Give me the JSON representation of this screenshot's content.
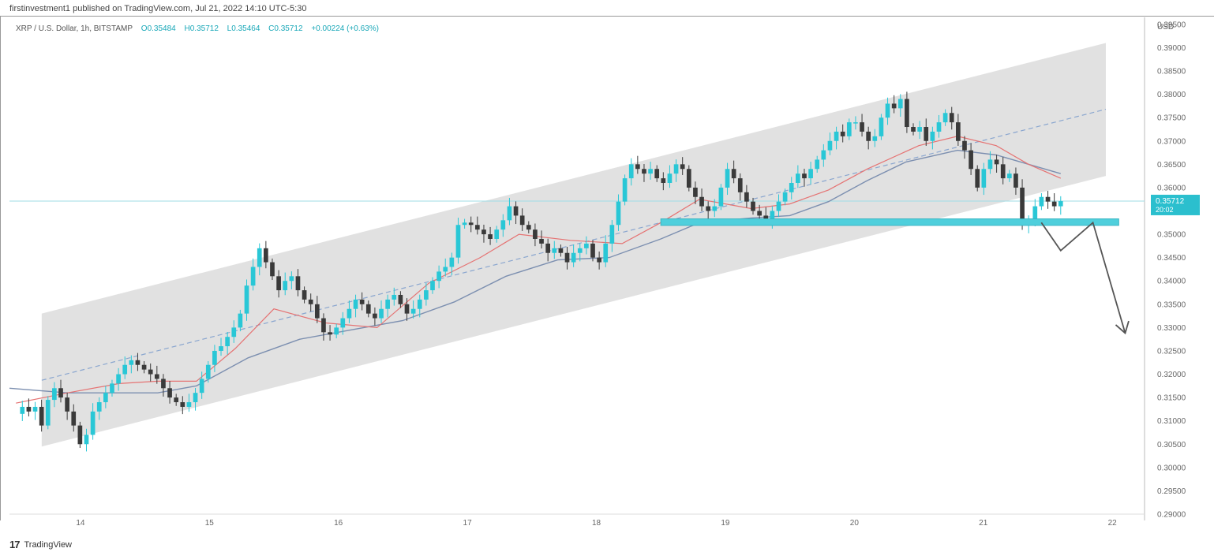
{
  "header": {
    "publish_line": "firstinvestment1 published on TradingView.com, Jul 21, 2022 14:10 UTC-5:30"
  },
  "legend": {
    "symbol": "XRP / U.S. Dollar, 1h, BITSTAMP",
    "open": "O0.35484",
    "high": "H0.35712",
    "low": "L0.35464",
    "close": "C0.35712",
    "change": "+0.00224 (+0.63%)"
  },
  "footer": {
    "logo": "17",
    "brand": "TradingView"
  },
  "colors": {
    "up": "#29c7d6",
    "down": "#3a3a3a",
    "channel_fill": "#dcdcdc",
    "ema_fast": "#e57373",
    "ema_slow": "#7c8fb0",
    "support": "#4fcfdc",
    "price_line": "#9fdde6",
    "projection": "#555555"
  },
  "chart_data": {
    "type": "candlestick",
    "title": "XRP / U.S. Dollar, 1h, BITSTAMP",
    "ylabel": "USD",
    "ylim": [
      0.29,
      0.3965
    ],
    "y_ticks": [
      "0.39500",
      "0.39000",
      "0.38500",
      "0.38000",
      "0.37500",
      "0.37000",
      "0.36500",
      "0.36000",
      "0.35500",
      "0.35000",
      "0.34500",
      "0.34000",
      "0.33500",
      "0.33000",
      "0.32500",
      "0.32000",
      "0.31500",
      "0.31000",
      "0.30500",
      "0.30000",
      "0.29500",
      "0.29000"
    ],
    "x_ticks": [
      "14",
      "15",
      "16",
      "17",
      "18",
      "19",
      "20",
      "21",
      "22"
    ],
    "x_range": [
      13.45,
      22.25
    ],
    "last_price": {
      "value": 0.35712,
      "label": "0.35712",
      "countdown": "20:02"
    },
    "channel": {
      "upper": [
        [
          13.7,
          0.333
        ],
        [
          21.95,
          0.391
        ]
      ],
      "lower": [
        [
          13.7,
          0.3045
        ],
        [
          21.95,
          0.3625
        ]
      ],
      "mid": [
        [
          13.7,
          0.3187
        ],
        [
          21.95,
          0.3768
        ]
      ]
    },
    "support_zone": {
      "from": 18.5,
      "to": 22.05,
      "low": 0.3519,
      "high": 0.3533
    },
    "projection": [
      [
        21.45,
        0.3525
      ],
      [
        21.6,
        0.3465
      ],
      [
        21.85,
        0.3525
      ],
      [
        22.1,
        0.3288
      ]
    ],
    "ema_fast": [
      [
        13.5,
        0.3138
      ],
      [
        13.9,
        0.316
      ],
      [
        14.3,
        0.318
      ],
      [
        14.6,
        0.3185
      ],
      [
        14.9,
        0.3185
      ],
      [
        15.2,
        0.3255
      ],
      [
        15.5,
        0.334
      ],
      [
        15.9,
        0.331
      ],
      [
        16.3,
        0.33
      ],
      [
        16.7,
        0.3395
      ],
      [
        17.1,
        0.345
      ],
      [
        17.4,
        0.35
      ],
      [
        17.8,
        0.3487
      ],
      [
        18.2,
        0.348
      ],
      [
        18.5,
        0.3525
      ],
      [
        18.8,
        0.3575
      ],
      [
        19.2,
        0.3555
      ],
      [
        19.5,
        0.3565
      ],
      [
        19.8,
        0.3595
      ],
      [
        20.1,
        0.364
      ],
      [
        20.5,
        0.369
      ],
      [
        20.8,
        0.371
      ],
      [
        21.1,
        0.369
      ],
      [
        21.35,
        0.365
      ],
      [
        21.6,
        0.362
      ]
    ],
    "ema_slow": [
      [
        13.45,
        0.317
      ],
      [
        13.9,
        0.316
      ],
      [
        14.3,
        0.316
      ],
      [
        14.6,
        0.316
      ],
      [
        14.9,
        0.3175
      ],
      [
        15.3,
        0.3235
      ],
      [
        15.7,
        0.3275
      ],
      [
        16.1,
        0.3295
      ],
      [
        16.5,
        0.3315
      ],
      [
        16.9,
        0.3355
      ],
      [
        17.3,
        0.341
      ],
      [
        17.7,
        0.3445
      ],
      [
        18.1,
        0.345
      ],
      [
        18.5,
        0.349
      ],
      [
        18.8,
        0.3525
      ],
      [
        19.2,
        0.3535
      ],
      [
        19.5,
        0.354
      ],
      [
        19.8,
        0.357
      ],
      [
        20.1,
        0.3615
      ],
      [
        20.4,
        0.3655
      ],
      [
        20.8,
        0.368
      ],
      [
        21.1,
        0.367
      ],
      [
        21.35,
        0.365
      ],
      [
        21.6,
        0.363
      ]
    ],
    "candles_path": [
      0.3115,
      0.313,
      0.312,
      0.313,
      0.309,
      0.3145,
      0.317,
      0.315,
      0.312,
      0.309,
      0.305,
      0.307,
      0.312,
      0.314,
      0.316,
      0.318,
      0.32,
      0.322,
      0.323,
      0.322,
      0.321,
      0.32,
      0.319,
      0.317,
      0.315,
      0.314,
      0.313,
      0.314,
      0.316,
      0.319,
      0.322,
      0.325,
      0.326,
      0.328,
      0.33,
      0.333,
      0.339,
      0.343,
      0.347,
      0.344,
      0.341,
      0.338,
      0.34,
      0.341,
      0.338,
      0.336,
      0.335,
      0.332,
      0.329,
      0.3285,
      0.33,
      0.332,
      0.334,
      0.336,
      0.335,
      0.333,
      0.332,
      0.334,
      0.336,
      0.337,
      0.335,
      0.333,
      0.334,
      0.336,
      0.338,
      0.34,
      0.342,
      0.343,
      0.345,
      0.352,
      0.3525,
      0.352,
      0.351,
      0.35,
      0.349,
      0.351,
      0.353,
      0.356,
      0.354,
      0.352,
      0.351,
      0.349,
      0.348,
      0.346,
      0.347,
      0.346,
      0.344,
      0.346,
      0.347,
      0.348,
      0.345,
      0.344,
      0.348,
      0.352,
      0.357,
      0.362,
      0.365,
      0.364,
      0.363,
      0.364,
      0.362,
      0.361,
      0.363,
      0.365,
      0.364,
      0.36,
      0.358,
      0.356,
      0.355,
      0.356,
      0.36,
      0.364,
      0.362,
      0.359,
      0.357,
      0.355,
      0.354,
      0.353,
      0.355,
      0.357,
      0.359,
      0.361,
      0.363,
      0.362,
      0.364,
      0.366,
      0.368,
      0.37,
      0.372,
      0.371,
      0.374,
      0.374,
      0.372,
      0.37,
      0.371,
      0.375,
      0.378,
      0.377,
      0.379,
      0.373,
      0.372,
      0.373,
      0.37,
      0.372,
      0.374,
      0.376,
      0.374,
      0.37,
      0.368,
      0.364,
      0.36,
      0.364,
      0.366,
      0.365,
      0.362,
      0.363,
      0.36,
      0.352,
      0.353,
      0.356,
      0.358,
      0.357,
      0.356,
      0.3571
    ]
  }
}
